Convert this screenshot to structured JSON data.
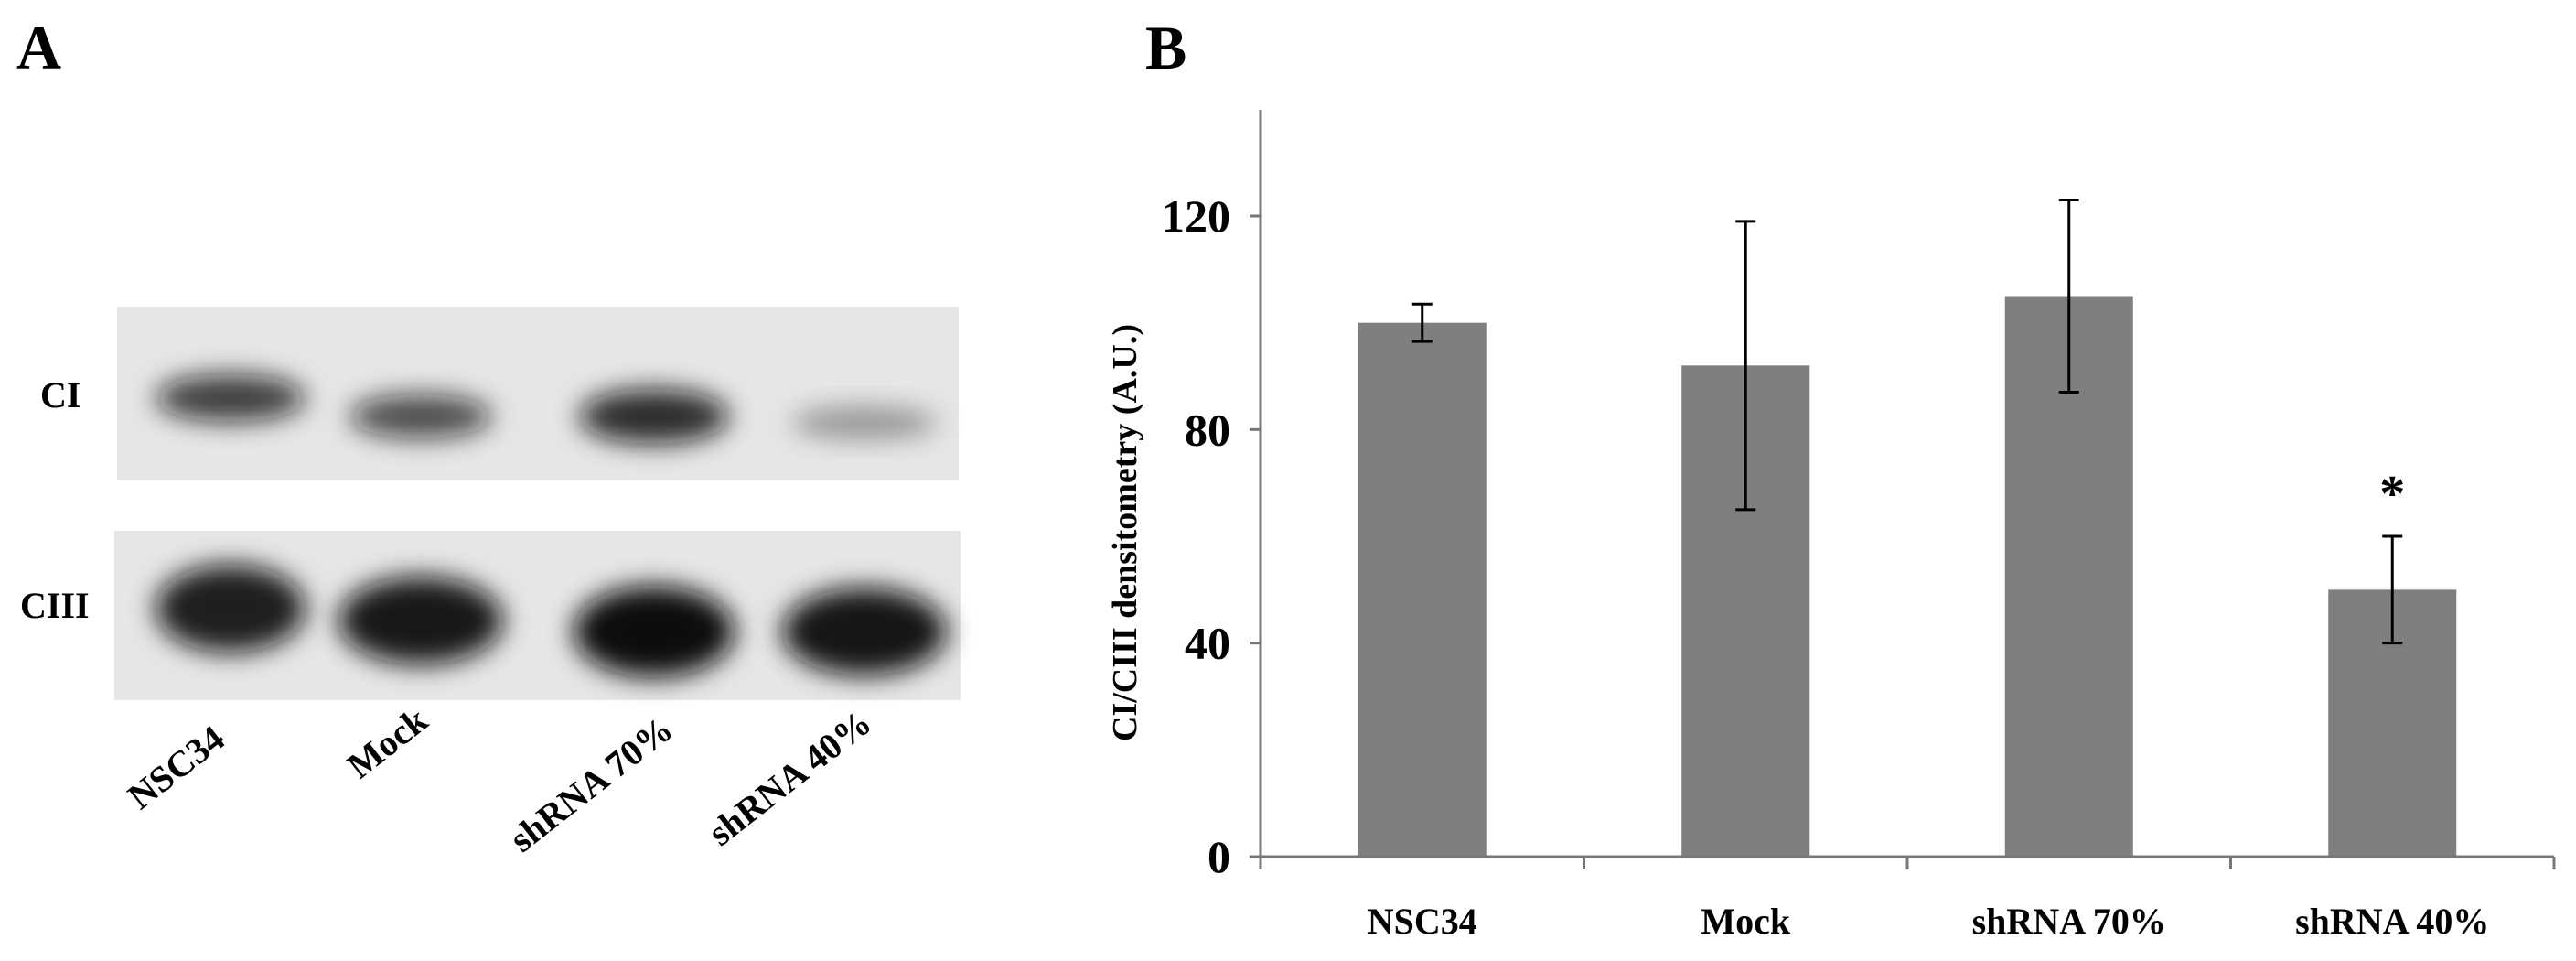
{
  "panel_a": {
    "label": "A",
    "blots": [
      {
        "label": "CI",
        "band_intensity": [
          0.78,
          0.72,
          0.86,
          0.35
        ]
      },
      {
        "label": "CIII",
        "band_intensity": [
          0.92,
          0.95,
          1.0,
          0.96
        ]
      }
    ],
    "lanes": [
      "NSC34",
      "Mock",
      "shRNA 70%",
      "shRNA 40%"
    ],
    "colors": {
      "membrane": "#e6e6e6",
      "band": "#0a0a0a"
    }
  },
  "panel_b": {
    "label": "B"
  },
  "chart_data": {
    "type": "bar",
    "title": "",
    "xlabel": "",
    "ylabel": "CI/CIII densitometry (A.U.)",
    "categories": [
      "NSC34",
      "Mock",
      "shRNA 70%",
      "shRNA 40%"
    ],
    "values": [
      100,
      92,
      105,
      50
    ],
    "error": [
      3.5,
      27,
      18,
      10
    ],
    "significance": [
      "",
      "",
      "",
      "*"
    ],
    "ylim": [
      0,
      140
    ],
    "yticks": [
      0,
      40,
      80,
      120
    ],
    "grid": false,
    "legend": "none",
    "bar_color": "#7f7f7f"
  }
}
